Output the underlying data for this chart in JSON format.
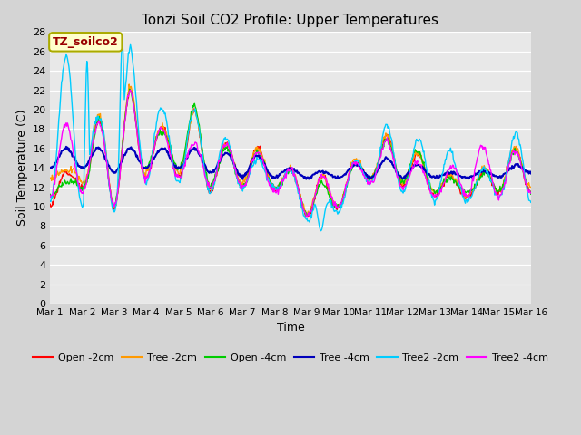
{
  "title": "Tonzi Soil CO2 Profile: Upper Temperatures",
  "xlabel": "Time",
  "ylabel": "Soil Temperature (C)",
  "ylim": [
    0,
    28
  ],
  "yticks": [
    0,
    2,
    4,
    6,
    8,
    10,
    12,
    14,
    16,
    18,
    20,
    22,
    24,
    26,
    28
  ],
  "xtick_labels": [
    "Mar 1",
    "Mar 2",
    "Mar 3",
    "Mar 4",
    "Mar 5",
    "Mar 6",
    "Mar 7",
    "Mar 8",
    "Mar 9",
    "Mar 10",
    "Mar 11",
    "Mar 12",
    "Mar 13",
    "Mar 14",
    "Mar 15",
    "Mar 16"
  ],
  "legend_label": "TZ_soilco2",
  "legend_box_facecolor": "#ffffcc",
  "legend_box_edgecolor": "#aaaa00",
  "legend_text_color": "#990000",
  "fig_facecolor": "#d4d4d4",
  "ax_facecolor": "#e8e8e8",
  "grid_color": "#ffffff",
  "series_order": [
    "Open -2cm",
    "Tree -2cm",
    "Open -4cm",
    "Tree -4cm",
    "Tree2 -2cm",
    "Tree2 -4cm"
  ],
  "series": {
    "Open -2cm": {
      "color": "#ff0000",
      "lw": 1.0
    },
    "Tree -2cm": {
      "color": "#ff9900",
      "lw": 1.0
    },
    "Open -4cm": {
      "color": "#00cc00",
      "lw": 1.0
    },
    "Tree -4cm": {
      "color": "#0000bb",
      "lw": 1.5
    },
    "Tree2 -2cm": {
      "color": "#00ccff",
      "lw": 1.0
    },
    "Tree2 -4cm": {
      "color": "#ff00ff",
      "lw": 1.0
    }
  },
  "n_days": 15,
  "pts_per_day": 48
}
